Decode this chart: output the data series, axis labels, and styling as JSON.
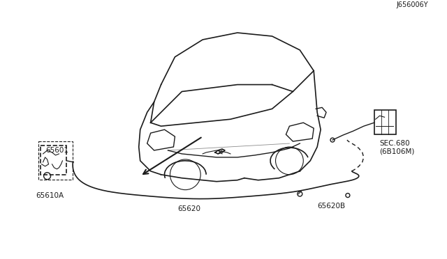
{
  "bg_color": "#ffffff",
  "line_color": "#1a1a1a",
  "dashed_color": "#555555",
  "labels": {
    "part1": "65601",
    "part2": "65610A",
    "part3": "65620",
    "part4": "65620B",
    "part5": "SEC.680\n(6B106M)",
    "diagram_id": "J656006Y"
  },
  "figsize": [
    6.4,
    3.72
  ],
  "dpi": 100
}
